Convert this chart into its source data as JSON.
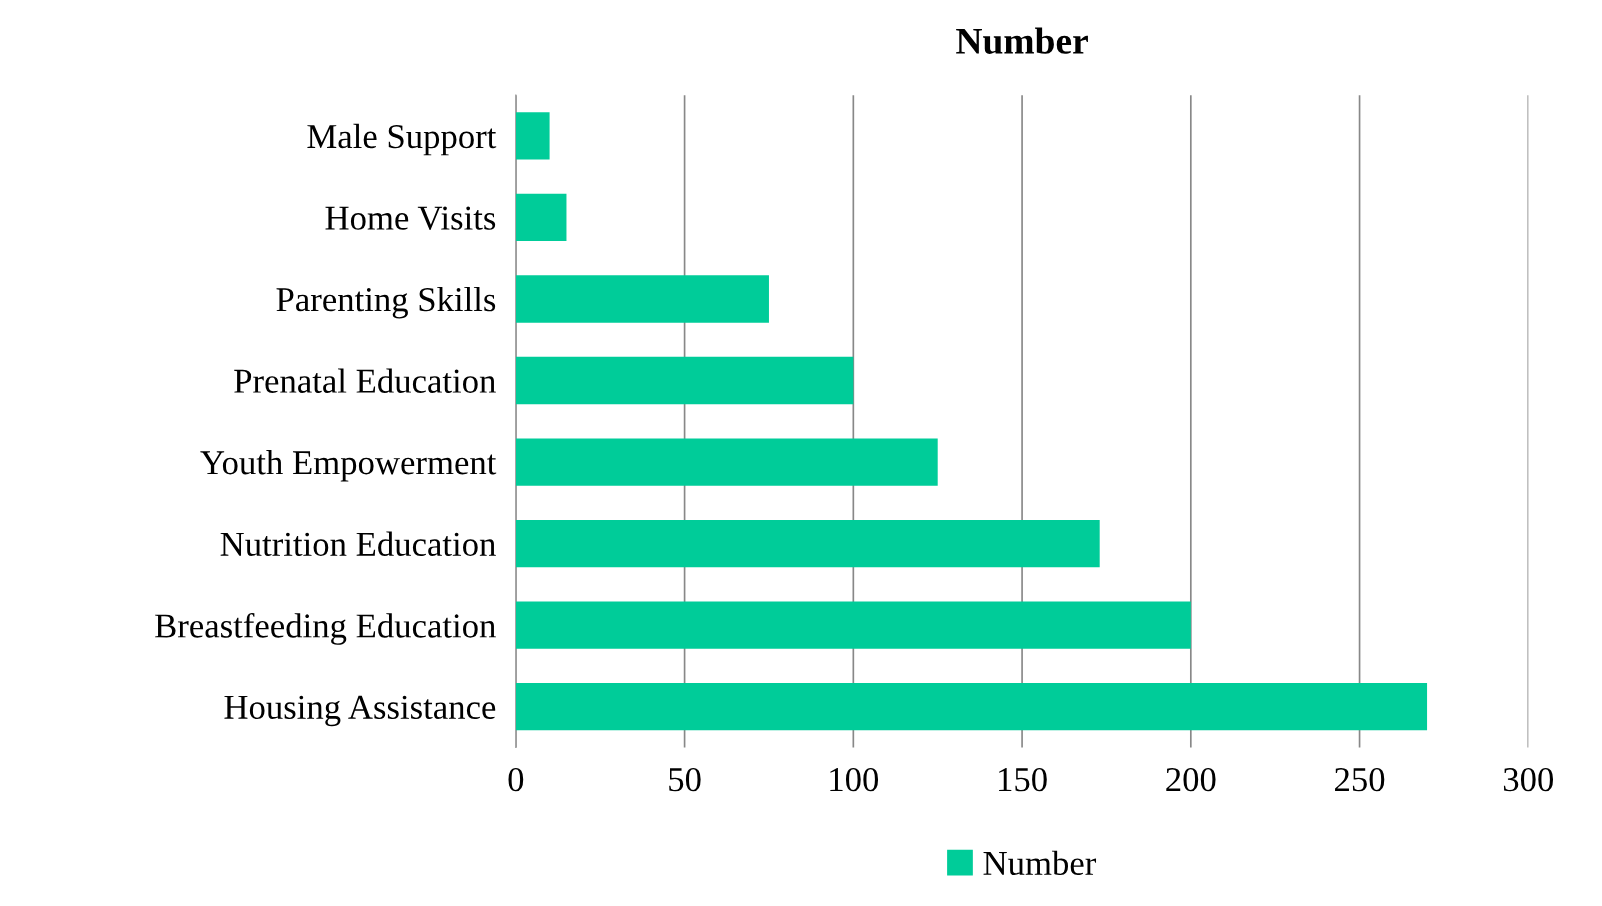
{
  "chart_data": {
    "type": "bar",
    "orientation": "horizontal",
    "title": "Number",
    "categories": [
      "Male Support",
      "Home Visits",
      "Parenting Skills",
      "Prenatal Education",
      "Youth Empowerment",
      "Nutrition Education",
      "Breastfeeding Education",
      "Housing Assistance"
    ],
    "series": [
      {
        "name": "Number",
        "color": "#00cc99",
        "values": [
          10,
          15,
          75,
          100,
          125,
          173,
          200,
          270
        ]
      }
    ],
    "xlim": [
      0,
      300
    ],
    "xticks": [
      0,
      50,
      100,
      150,
      200,
      250,
      300
    ],
    "grid": "x",
    "legend": "bottom"
  }
}
